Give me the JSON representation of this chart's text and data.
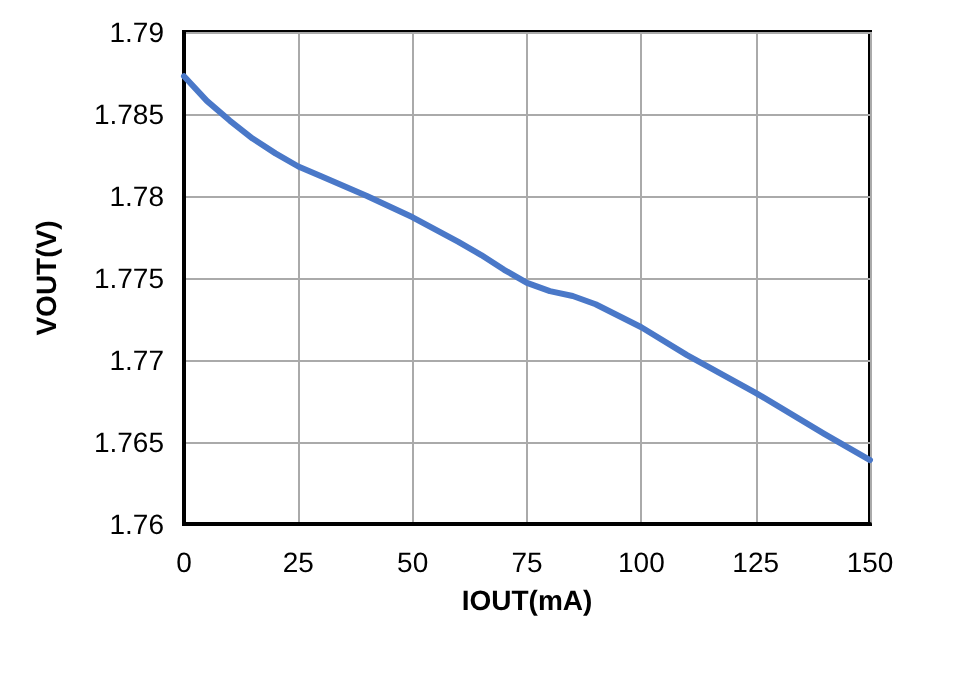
{
  "chart_data": {
    "type": "line",
    "xlabel": "IOUT(mA)",
    "ylabel": "VOUT(V)",
    "x": [
      0,
      5,
      10,
      15,
      20,
      25,
      30,
      40,
      50,
      60,
      65,
      70,
      75,
      80,
      85,
      90,
      95,
      100,
      110,
      125,
      140,
      150
    ],
    "series": [
      {
        "color": "#4a78c8",
        "values": [
          1.7873,
          1.7858,
          1.7846,
          1.7835,
          1.7826,
          1.7818,
          1.7812,
          1.78,
          1.7787,
          1.7772,
          1.7764,
          1.7755,
          1.7747,
          1.7742,
          1.7739,
          1.7734,
          1.7727,
          1.772,
          1.7703,
          1.768,
          1.7655,
          1.7639
        ]
      }
    ],
    "xlim": [
      0,
      150
    ],
    "xticks": [
      0,
      25,
      50,
      75,
      100,
      125,
      150
    ],
    "ylim": [
      1.76,
      1.79
    ],
    "yticks": [
      1.76,
      1.765,
      1.77,
      1.775,
      1.78,
      1.785,
      1.79
    ],
    "grid": true,
    "marker": "none",
    "line_style": "solid"
  }
}
